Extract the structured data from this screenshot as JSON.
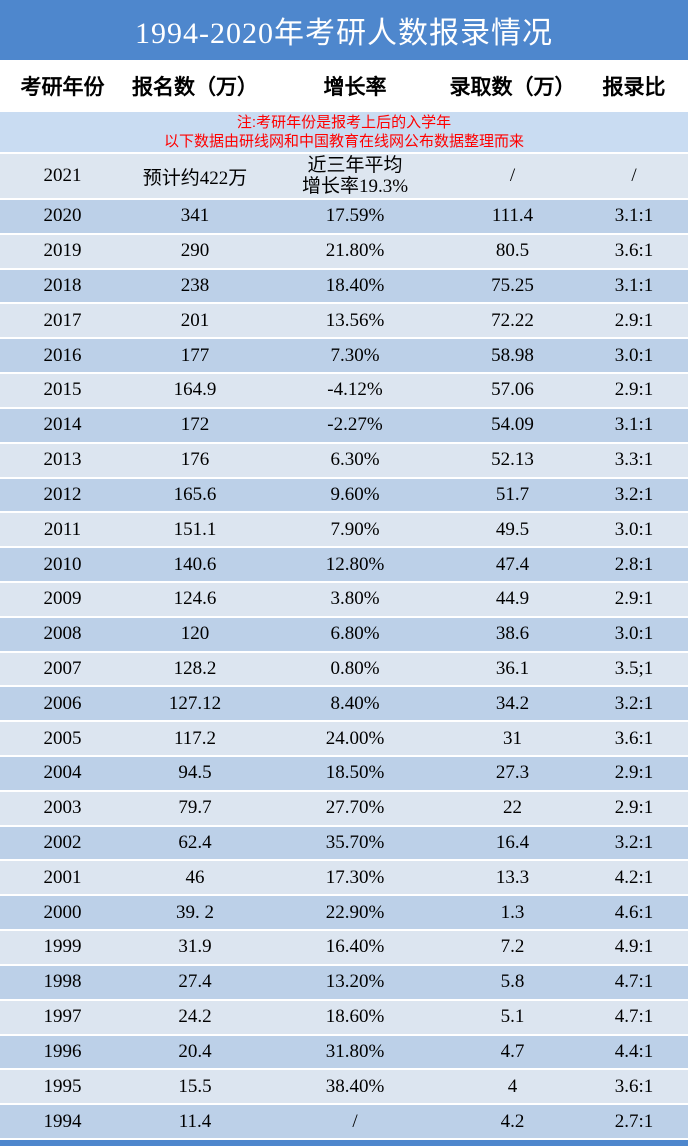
{
  "title": "1994-2020年考研人数报录情况",
  "columns": [
    "考研年份",
    "报名数（万）",
    "增长率",
    "录取数（万）",
    "报录比"
  ],
  "note": {
    "line1": "注:考研年份是报考上后的入学年",
    "line2": "以下数据由研线网和中国教育在线网公布数据整理而来"
  },
  "special_row": {
    "year": "2021",
    "applicants": "预计约422万",
    "growth_line1": "近三年平均",
    "growth_line2": "增长率19.3%",
    "admitted": "/",
    "ratio": "/"
  },
  "rows": [
    {
      "year": "2020",
      "applicants": "341",
      "growth": "17.59%",
      "admitted": "111.4",
      "ratio": "3.1:1"
    },
    {
      "year": "2019",
      "applicants": "290",
      "growth": "21.80%",
      "admitted": "80.5",
      "ratio": "3.6:1"
    },
    {
      "year": "2018",
      "applicants": "238",
      "growth": "18.40%",
      "admitted": "75.25",
      "ratio": "3.1:1"
    },
    {
      "year": "2017",
      "applicants": "201",
      "growth": "13.56%",
      "admitted": "72.22",
      "ratio": "2.9:1"
    },
    {
      "year": "2016",
      "applicants": "177",
      "growth": "7.30%",
      "admitted": "58.98",
      "ratio": "3.0:1"
    },
    {
      "year": "2015",
      "applicants": "164.9",
      "growth": "-4.12%",
      "admitted": "57.06",
      "ratio": "2.9:1"
    },
    {
      "year": "2014",
      "applicants": "172",
      "growth": "-2.27%",
      "admitted": "54.09",
      "ratio": "3.1:1"
    },
    {
      "year": "2013",
      "applicants": "176",
      "growth": "6.30%",
      "admitted": "52.13",
      "ratio": "3.3:1"
    },
    {
      "year": "2012",
      "applicants": "165.6",
      "growth": "9.60%",
      "admitted": "51.7",
      "ratio": "3.2:1"
    },
    {
      "year": "2011",
      "applicants": "151.1",
      "growth": "7.90%",
      "admitted": "49.5",
      "ratio": "3.0:1"
    },
    {
      "year": "2010",
      "applicants": "140.6",
      "growth": "12.80%",
      "admitted": "47.4",
      "ratio": "2.8:1"
    },
    {
      "year": "2009",
      "applicants": "124.6",
      "growth": "3.80%",
      "admitted": "44.9",
      "ratio": "2.9:1"
    },
    {
      "year": "2008",
      "applicants": "120",
      "growth": "6.80%",
      "admitted": "38.6",
      "ratio": "3.0:1"
    },
    {
      "year": "2007",
      "applicants": "128.2",
      "growth": "0.80%",
      "admitted": "36.1",
      "ratio": "3.5;1"
    },
    {
      "year": "2006",
      "applicants": "127.12",
      "growth": "8.40%",
      "admitted": "34.2",
      "ratio": "3.2:1"
    },
    {
      "year": "2005",
      "applicants": "117.2",
      "growth": "24.00%",
      "admitted": "31",
      "ratio": "3.6:1"
    },
    {
      "year": "2004",
      "applicants": "94.5",
      "growth": "18.50%",
      "admitted": "27.3",
      "ratio": "2.9:1"
    },
    {
      "year": "2003",
      "applicants": "79.7",
      "growth": "27.70%",
      "admitted": "22",
      "ratio": "2.9:1"
    },
    {
      "year": "2002",
      "applicants": "62.4",
      "growth": "35.70%",
      "admitted": "16.4",
      "ratio": "3.2:1"
    },
    {
      "year": "2001",
      "applicants": "46",
      "growth": "17.30%",
      "admitted": "13.3",
      "ratio": "4.2:1"
    },
    {
      "year": "2000",
      "applicants": "39. 2",
      "growth": "22.90%",
      "admitted": "1.3",
      "ratio": "4.6:1"
    },
    {
      "year": "1999",
      "applicants": "31.9",
      "growth": "16.40%",
      "admitted": "7.2",
      "ratio": "4.9:1"
    },
    {
      "year": "1998",
      "applicants": "27.4",
      "growth": "13.20%",
      "admitted": "5.8",
      "ratio": "4.7:1"
    },
    {
      "year": "1997",
      "applicants": "24.2",
      "growth": "18.60%",
      "admitted": "5.1",
      "ratio": "4.7:1"
    },
    {
      "year": "1996",
      "applicants": "20.4",
      "growth": "31.80%",
      "admitted": "4.7",
      "ratio": "4.4:1"
    },
    {
      "year": "1995",
      "applicants": "15.5",
      "growth": "38.40%",
      "admitted": "4",
      "ratio": "3.6:1"
    },
    {
      "year": "1994",
      "applicants": "11.4",
      "growth": "/",
      "admitted": "4.2",
      "ratio": "2.7:1"
    }
  ],
  "colors": {
    "header_blue": "#4e87cd",
    "row_dark": "#bcd0e8",
    "row_light": "#dce5f0",
    "note_bg": "#c9dcf2",
    "note_text": "#ff0000"
  },
  "chart_data": {
    "type": "table",
    "title": "1994-2020年考研人数报录情况",
    "columns": [
      "考研年份",
      "报名数（万）",
      "增长率",
      "录取数（万）",
      "报录比"
    ],
    "rows": [
      [
        "2021",
        "预计约422万",
        "近三年平均 增长率19.3%",
        "/",
        "/"
      ],
      [
        "2020",
        "341",
        "17.59%",
        "111.4",
        "3.1:1"
      ],
      [
        "2019",
        "290",
        "21.80%",
        "80.5",
        "3.6:1"
      ],
      [
        "2018",
        "238",
        "18.40%",
        "75.25",
        "3.1:1"
      ],
      [
        "2017",
        "201",
        "13.56%",
        "72.22",
        "2.9:1"
      ],
      [
        "2016",
        "177",
        "7.30%",
        "58.98",
        "3.0:1"
      ],
      [
        "2015",
        "164.9",
        "-4.12%",
        "57.06",
        "2.9:1"
      ],
      [
        "2014",
        "172",
        "-2.27%",
        "54.09",
        "3.1:1"
      ],
      [
        "2013",
        "176",
        "6.30%",
        "52.13",
        "3.3:1"
      ],
      [
        "2012",
        "165.6",
        "9.60%",
        "51.7",
        "3.2:1"
      ],
      [
        "2011",
        "151.1",
        "7.90%",
        "49.5",
        "3.0:1"
      ],
      [
        "2010",
        "140.6",
        "12.80%",
        "47.4",
        "2.8:1"
      ],
      [
        "2009",
        "124.6",
        "3.80%",
        "44.9",
        "2.9:1"
      ],
      [
        "2008",
        "120",
        "6.80%",
        "38.6",
        "3.0:1"
      ],
      [
        "2007",
        "128.2",
        "0.80%",
        "36.1",
        "3.5;1"
      ],
      [
        "2006",
        "127.12",
        "8.40%",
        "34.2",
        "3.2:1"
      ],
      [
        "2005",
        "117.2",
        "24.00%",
        "31",
        "3.6:1"
      ],
      [
        "2004",
        "94.5",
        "18.50%",
        "27.3",
        "2.9:1"
      ],
      [
        "2003",
        "79.7",
        "27.70%",
        "22",
        "2.9:1"
      ],
      [
        "2002",
        "62.4",
        "35.70%",
        "16.4",
        "3.2:1"
      ],
      [
        "2001",
        "46",
        "17.30%",
        "13.3",
        "4.2:1"
      ],
      [
        "2000",
        "39. 2",
        "22.90%",
        "1.3",
        "4.6:1"
      ],
      [
        "1999",
        "31.9",
        "16.40%",
        "7.2",
        "4.9:1"
      ],
      [
        "1998",
        "27.4",
        "13.20%",
        "5.8",
        "4.7:1"
      ],
      [
        "1997",
        "24.2",
        "18.60%",
        "5.1",
        "4.7:1"
      ],
      [
        "1996",
        "20.4",
        "31.80%",
        "4.7",
        "4.4:1"
      ],
      [
        "1995",
        "15.5",
        "38.40%",
        "4",
        "3.6:1"
      ],
      [
        "1994",
        "11.4",
        "/",
        "4.2",
        "2.7:1"
      ]
    ]
  }
}
